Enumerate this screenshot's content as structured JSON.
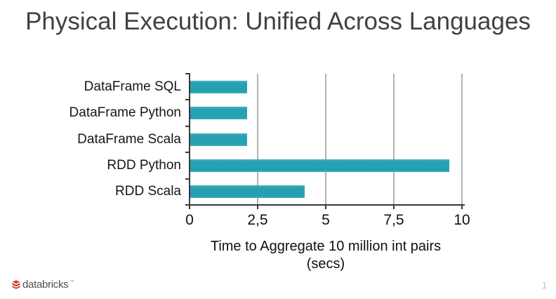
{
  "page": {
    "title": "Physical Execution: Unified Across Languages",
    "page_number": "1"
  },
  "footer": {
    "logo_text": "databricks",
    "trademark": "™"
  },
  "chart_data": {
    "type": "bar",
    "orientation": "horizontal",
    "title": "Physical Execution: Unified Across Languages",
    "categories": [
      "DataFrame SQL",
      "DataFrame Python",
      "DataFrame Scala",
      "RDD Python",
      "RDD Scala"
    ],
    "values": [
      2.1,
      2.1,
      2.1,
      9.5,
      4.2
    ],
    "xlim": [
      0,
      10
    ],
    "xticks": [
      0,
      2.5,
      5,
      7.5,
      10
    ],
    "xtick_labels": [
      "0",
      "2,5",
      "5",
      "7,5",
      "10"
    ],
    "xlabel_lines": [
      "Time to Aggregate 10 million int pairs",
      "(secs)"
    ],
    "grid": true,
    "legend": "none",
    "colors": {
      "bar": "#26a1b2",
      "axis": "#3a3a3a",
      "gridline": "#b2b2b2",
      "title_text": "#414141",
      "logo_red": "#e63b2a",
      "logo_red_dark": "#c42f1e"
    }
  }
}
